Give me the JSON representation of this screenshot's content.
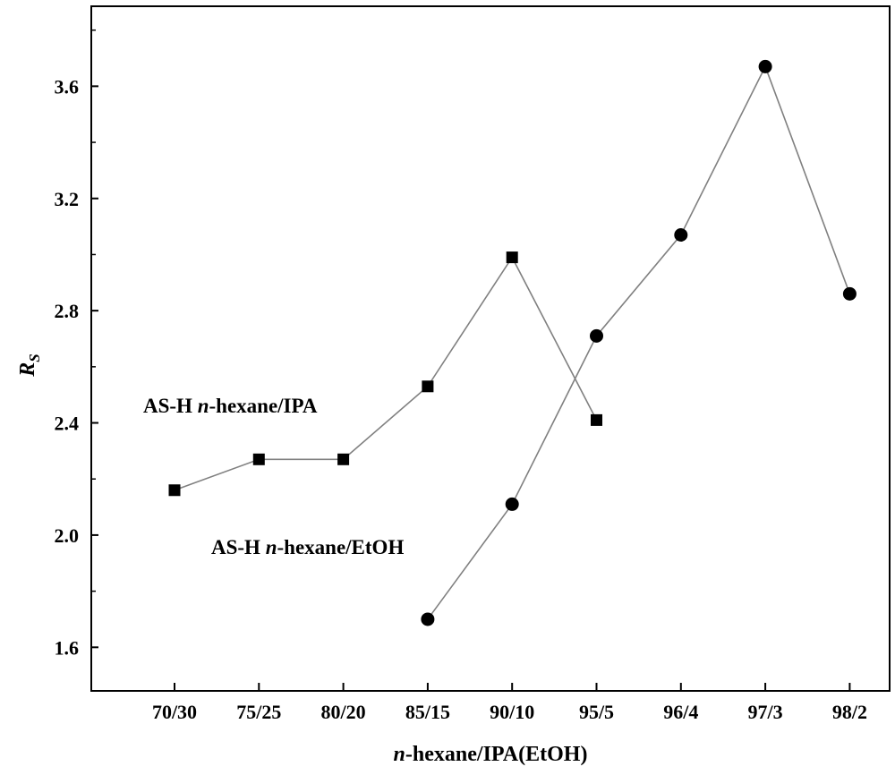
{
  "chart_data": {
    "type": "line",
    "title": "",
    "xlabel": "n-hexane/IPA(EtOH)",
    "xlabel_parts": [
      {
        "text": "n",
        "italic": true
      },
      {
        "text": "-hexane/IPA(EtOH)",
        "italic": false
      }
    ],
    "ylabel": "RS",
    "ylabel_parts": [
      {
        "text": "R",
        "italic": true,
        "sub": false
      },
      {
        "text": "S",
        "italic": true,
        "sub": true
      }
    ],
    "categories": [
      "70/30",
      "75/25",
      "80/20",
      "85/15",
      "90/10",
      "95/5",
      "96/4",
      "97/3",
      "98/2"
    ],
    "ylim": [
      1.4,
      3.85
    ],
    "yticks": [
      1.6,
      2.0,
      2.4,
      2.8,
      3.2,
      3.6
    ],
    "ytick_labels": [
      "1.6",
      "2.0",
      "2.4",
      "2.8",
      "3.2",
      "3.6"
    ],
    "grid": false,
    "series": [
      {
        "name": "AS-H n-hexane/IPA",
        "marker": "square",
        "x": [
          "70/30",
          "75/25",
          "80/20",
          "85/15",
          "90/10",
          "95/5"
        ],
        "values": [
          2.16,
          2.27,
          2.27,
          2.53,
          2.99,
          2.41
        ]
      },
      {
        "name": "AS-H n-hexane/EtOH",
        "marker": "circle",
        "x": [
          "85/15",
          "90/10",
          "95/5",
          "96/4",
          "97/3",
          "98/2"
        ],
        "values": [
          1.7,
          2.11,
          2.71,
          3.07,
          3.67,
          2.86
        ]
      }
    ],
    "annotations": [
      {
        "series": 0,
        "parts": [
          {
            "text": "AS-H ",
            "italic": false
          },
          {
            "text": "n",
            "italic": true
          },
          {
            "text": "-hexane/IPA",
            "italic": false
          }
        ]
      },
      {
        "series": 1,
        "parts": [
          {
            "text": "AS-H ",
            "italic": false
          },
          {
            "text": "n",
            "italic": true
          },
          {
            "text": "-hexane/EtOH",
            "italic": false
          }
        ]
      }
    ],
    "colors": {
      "line": "#808080",
      "marker": "#000000",
      "axis": "#000000",
      "background": "#ffffff"
    }
  }
}
